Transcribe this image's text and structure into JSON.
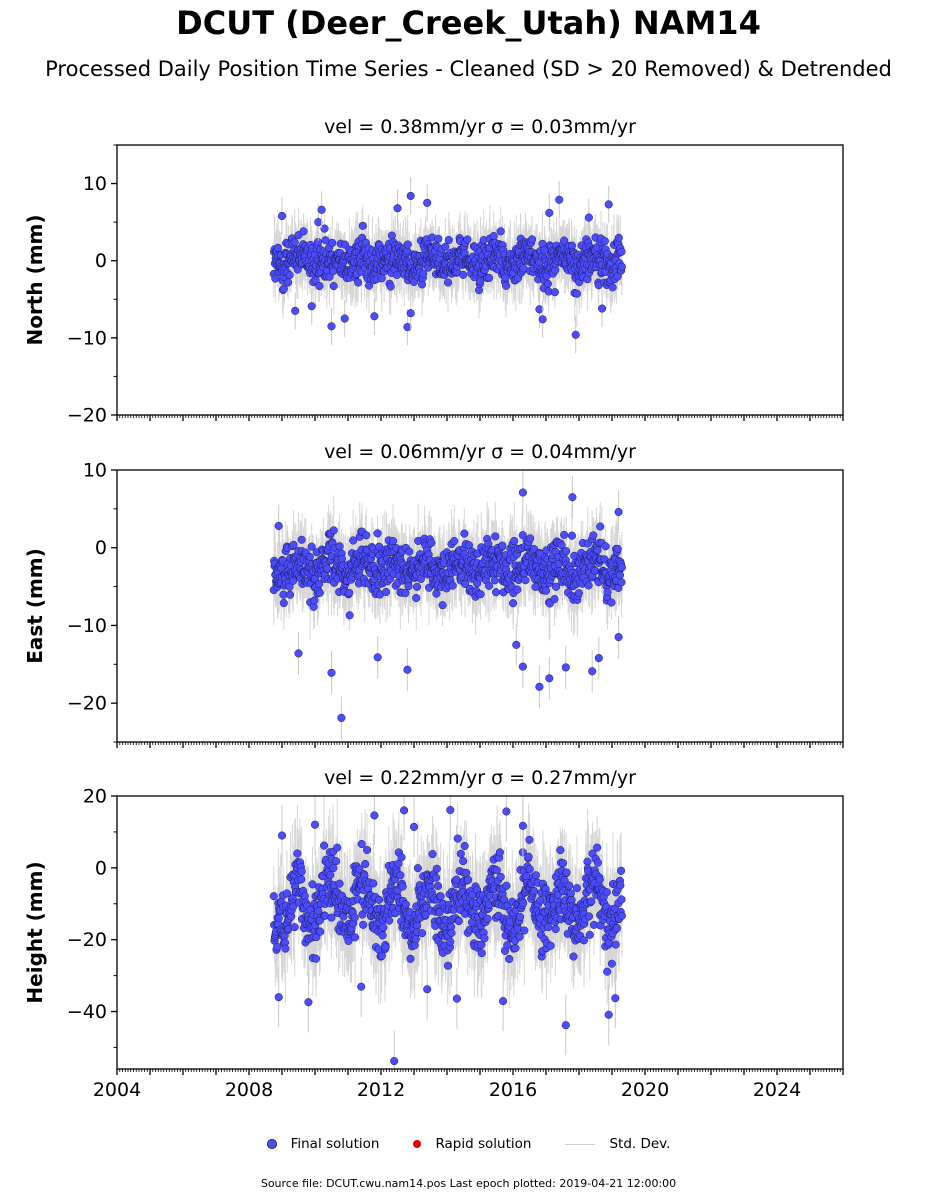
{
  "title": "DCUT (Deer_Creek_Utah) NAM14",
  "subtitle": "Processed Daily Position Time Series - Cleaned (SD > 20 Removed) & Detrended",
  "legend": {
    "final": "Final solution",
    "rapid": "Rapid solution",
    "std": "Std. Dev."
  },
  "footer": "Source file: DCUT.cwu.nam14.pos  Last epoch plotted: 2019-04-21 12:00:00",
  "colors": {
    "final": "#4c4cff",
    "rapid": "#e00000",
    "std": "#c8c8c8"
  },
  "chart_data": [
    {
      "type": "scatter",
      "panel_title": "vel = 0.38mm/yr   σ = 0.03mm/yr",
      "ylabel": "North (mm)",
      "xlim": [
        2004,
        2026
      ],
      "ylim": [
        -20,
        15
      ],
      "yticks": [
        10,
        0,
        -10,
        -20
      ],
      "xticks": [],
      "data_range": [
        2008.75,
        2019.3
      ],
      "center": 0,
      "spread": 2.0,
      "seasonal_amp": 0.6,
      "series": [
        {
          "name": "Final solution",
          "points": [
            [
              2009.0,
              5.8
            ],
            [
              2010.1,
              5.0
            ],
            [
              2010.2,
              6.6
            ],
            [
              2012.5,
              6.8
            ],
            [
              2012.9,
              8.4
            ],
            [
              2013.4,
              7.5
            ],
            [
              2017.1,
              6.2
            ],
            [
              2017.4,
              7.9
            ],
            [
              2018.3,
              5.6
            ],
            [
              2018.9,
              7.3
            ],
            [
              2009.4,
              -6.5
            ],
            [
              2009.9,
              -5.9
            ],
            [
              2010.5,
              -8.5
            ],
            [
              2010.9,
              -7.5
            ],
            [
              2011.8,
              -7.2
            ],
            [
              2012.8,
              -8.6
            ],
            [
              2012.9,
              -6.8
            ],
            [
              2016.8,
              -6.3
            ],
            [
              2016.9,
              -7.6
            ],
            [
              2017.9,
              -9.6
            ],
            [
              2018.7,
              -6.2
            ]
          ]
        }
      ]
    },
    {
      "type": "scatter",
      "panel_title": "vel = 0.06mm/yr   σ = 0.04mm/yr",
      "ylabel": "East (mm)",
      "xlim": [
        2004,
        2026
      ],
      "ylim": [
        -25,
        10
      ],
      "yticks": [
        10,
        0,
        -10,
        -20
      ],
      "xticks": [],
      "data_range": [
        2008.75,
        2019.3
      ],
      "center": -2.5,
      "spread": 2.3,
      "seasonal_amp": 1.0,
      "series": [
        {
          "name": "Final solution",
          "points": [
            [
              2008.9,
              2.8
            ],
            [
              2016.3,
              7.1
            ],
            [
              2017.8,
              6.5
            ],
            [
              2019.2,
              4.6
            ],
            [
              2009.5,
              -13.6
            ],
            [
              2010.5,
              -16.1
            ],
            [
              2010.8,
              -21.9
            ],
            [
              2011.9,
              -14.1
            ],
            [
              2012.8,
              -15.7
            ],
            [
              2016.1,
              -12.5
            ],
            [
              2016.3,
              -15.3
            ],
            [
              2016.8,
              -17.9
            ],
            [
              2017.1,
              -16.8
            ],
            [
              2017.6,
              -15.4
            ],
            [
              2018.4,
              -15.9
            ],
            [
              2018.6,
              -14.2
            ],
            [
              2019.2,
              -11.5
            ]
          ]
        }
      ]
    },
    {
      "type": "scatter",
      "panel_title": "vel = 0.22mm/yr   σ = 0.27mm/yr",
      "ylabel": "Height (mm)",
      "xlim": [
        2004,
        2026
      ],
      "ylim": [
        -56,
        20
      ],
      "yticks": [
        20,
        0,
        -20,
        -40
      ],
      "xticks": [
        2004,
        2008,
        2012,
        2016,
        2020,
        2024
      ],
      "data_range": [
        2008.75,
        2019.3
      ],
      "center": -10,
      "spread": 7.0,
      "seasonal_amp": 6.0,
      "series": [
        {
          "name": "Final solution",
          "points": [
            [
              2009.0,
              9.0
            ],
            [
              2010.0,
              12.0
            ],
            [
              2011.8,
              14.6
            ],
            [
              2012.7,
              16.0
            ],
            [
              2013.0,
              11.4
            ],
            [
              2014.1,
              16.1
            ],
            [
              2015.8,
              15.7
            ],
            [
              2016.3,
              11.7
            ],
            [
              2008.9,
              -36.0
            ],
            [
              2009.8,
              -37.4
            ],
            [
              2011.4,
              -33.1
            ],
            [
              2012.4,
              -53.8
            ],
            [
              2013.4,
              -33.8
            ],
            [
              2014.3,
              -36.4
            ],
            [
              2015.7,
              -37.1
            ],
            [
              2017.6,
              -43.8
            ],
            [
              2018.9,
              -40.9
            ],
            [
              2019.1,
              -36.3
            ]
          ]
        }
      ]
    }
  ]
}
